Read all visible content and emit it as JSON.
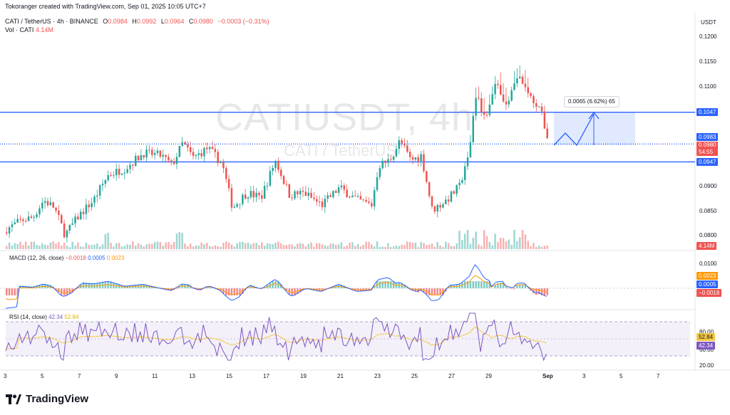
{
  "header": {
    "created_by": "Tokoranger created with TradingView.com, Sep 01, 2025 10:05 UTC+7",
    "symbol_line": "CATI / TetherUS · 4h · BINANCE",
    "open_label": "O",
    "open": "0.0984",
    "high_label": "H",
    "high": "0.0992",
    "low_label": "L",
    "low": "0.0964",
    "close_label": "C",
    "close": "0.0980",
    "change": "−0.0003 (−0.31%)",
    "volume_label": "Vol · CATI",
    "volume": "4.14M"
  },
  "watermark": {
    "symbol": "CATIUSDT, 4h",
    "name": "CATI / TetherUS"
  },
  "price_axis": {
    "currency": "USDT",
    "ticks": [
      "0.1200",
      "0.1150",
      "0.1100",
      "0.0900",
      "0.0850",
      "0.0800"
    ],
    "levels": {
      "upper": "0.1047",
      "current_marker": "0.0983",
      "last_price": "0.0980",
      "countdown": "54:55",
      "lower": "0.0947",
      "volume": "4.14M"
    }
  },
  "projection": {
    "label": "0.0065 (6.62%) 65"
  },
  "macd": {
    "label": "MACD (12, 26, close)",
    "hist": "−0.0018",
    "macd": "0.0005",
    "signal": "0.0023",
    "axis_top": "0.0100"
  },
  "rsi": {
    "label": "RSI (14, close)",
    "value": "42.34",
    "ma": "52.84",
    "axis": [
      "80.00",
      "60.00",
      "20.00"
    ]
  },
  "time_axis": [
    "3",
    "5",
    "7",
    "9",
    "11",
    "13",
    "15",
    "17",
    "19",
    "21",
    "23",
    "25",
    "27",
    "29",
    "Sep",
    "3",
    "5",
    "7"
  ],
  "branding": "TradingView",
  "colors": {
    "up": "#26a69a",
    "down": "#ef5350",
    "level": "#2962ff",
    "macd_line": "#2962ff",
    "signal_line": "#ff9800",
    "rsi_line": "#7e57c2",
    "rsi_ma": "#f5c842"
  },
  "chart_data": {
    "type": "candlestick",
    "price_levels": [
      0.1047,
      0.0983,
      0.0947
    ],
    "last_close": 0.098,
    "macd_values": {
      "histogram": -0.0018,
      "macd": 0.0005,
      "signal": 0.0023
    },
    "rsi_values": {
      "rsi": 42.34,
      "ma": 52.84
    }
  }
}
